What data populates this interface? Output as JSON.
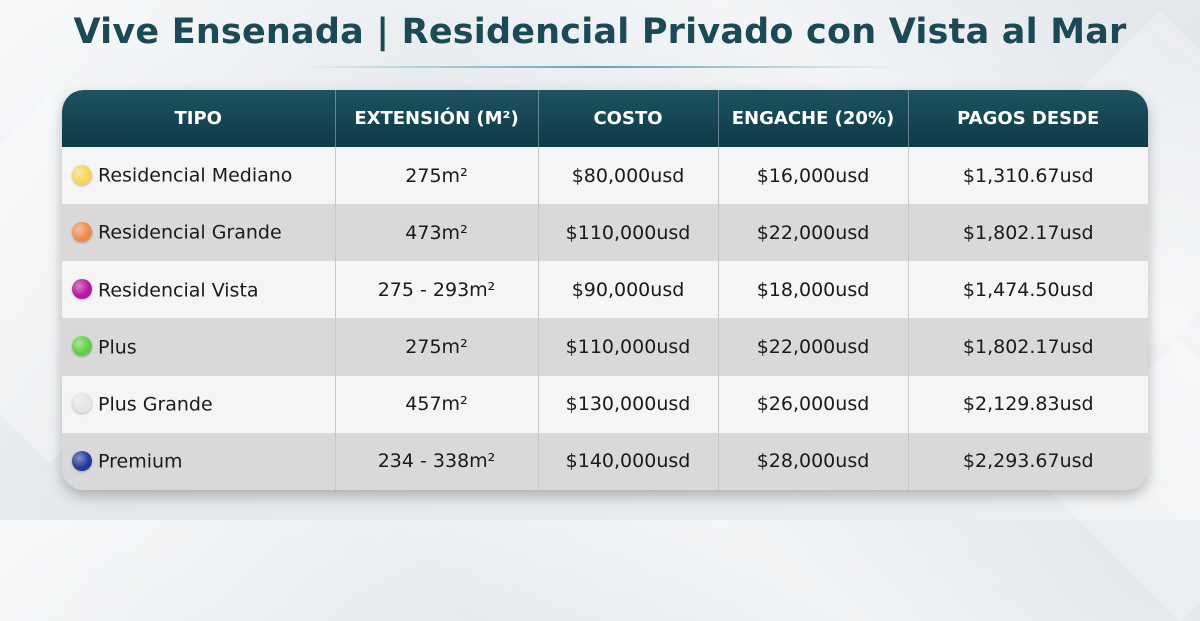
{
  "title": "Vive Ensenada | Residencial Privado con Vista al Mar",
  "table": {
    "headers": [
      "TIPO",
      "EXTENSIÓN (M²)",
      "COSTO",
      "ENGACHE (20%)",
      "PAGOS DESDE"
    ],
    "rows": [
      {
        "tipo": "Residencial Mediano",
        "dot_color": "#f6d55c",
        "extension": "275m²",
        "costo": "$80,000usd",
        "enganche": "$16,000usd",
        "pagos": "$1,310.67usd"
      },
      {
        "tipo": "Residencial Grande",
        "dot_color": "#f08a4b",
        "extension": "473m²",
        "costo": "$110,000usd",
        "enganche": "$22,000usd",
        "pagos": "$1,802.17usd"
      },
      {
        "tipo": "Residencial Vista",
        "dot_color": "#b5179e",
        "extension": "275 - 293m²",
        "costo": "$90,000usd",
        "enganche": "$18,000usd",
        "pagos": "$1,474.50usd"
      },
      {
        "tipo": "Plus",
        "dot_color": "#5fcf3f",
        "extension": "275m²",
        "costo": "$110,000usd",
        "enganche": "$22,000usd",
        "pagos": "$1,802.17usd"
      },
      {
        "tipo": "Plus Grande",
        "dot_color": "#e4e4e4",
        "extension": "457m²",
        "costo": "$130,000usd",
        "enganche": "$26,000usd",
        "pagos": "$2,129.83usd"
      },
      {
        "tipo": "Premium",
        "dot_color": "#1f3a9a",
        "extension": "234 - 338m²",
        "costo": "$140,000usd",
        "enganche": "$28,000usd",
        "pagos": "$2,293.67usd"
      }
    ]
  }
}
